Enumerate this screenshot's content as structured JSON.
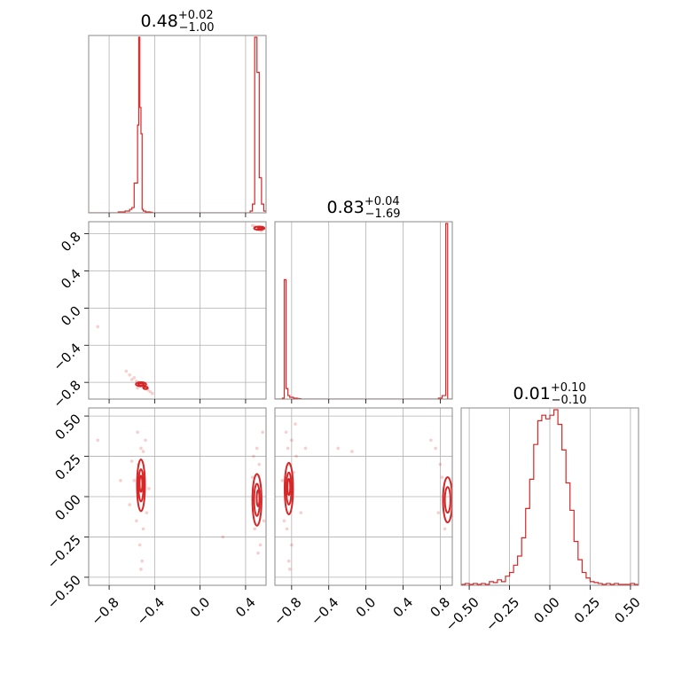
{
  "chart_data": {
    "type": "corner",
    "color": "#d62728",
    "grid": true,
    "titles": [
      {
        "value": "0.48",
        "plus": "+0.02",
        "minus": "−1.00"
      },
      {
        "value": "0.83",
        "plus": "+0.04",
        "minus": "−1.69"
      },
      {
        "value": "0.01",
        "plus": "+0.10",
        "minus": "−0.10"
      }
    ],
    "axes": {
      "p0": {
        "range": [
          -0.98,
          0.58
        ],
        "ticks": [
          -0.8,
          -0.4,
          0.0,
          0.4
        ],
        "tick_labels": [
          "−0.8",
          "−0.4",
          "0.0",
          "0.4"
        ]
      },
      "p1": {
        "range": [
          -0.98,
          0.93
        ],
        "ticks": [
          -0.8,
          -0.4,
          0.0,
          0.4,
          0.8
        ],
        "tick_labels": [
          "−0.8",
          "−0.4",
          "0.0",
          "0.4",
          "0.8"
        ]
      },
      "p2": {
        "range": [
          -0.55,
          0.55
        ],
        "ticks": [
          -0.5,
          -0.25,
          0.0,
          0.25,
          0.5
        ],
        "tick_labels": [
          "−0.50",
          "−0.25",
          "0.00",
          "0.25",
          "0.50"
        ]
      }
    },
    "hist_p0": {
      "edges": [
        -0.98,
        -0.72,
        -0.66,
        -0.62,
        -0.6,
        -0.58,
        -0.56,
        -0.55,
        -0.54,
        -0.53,
        -0.52,
        -0.51,
        -0.5,
        -0.48,
        -0.46,
        -0.44,
        -0.42,
        -0.38,
        0.22,
        0.26,
        0.28,
        0.3,
        0.32,
        0.34,
        0.36,
        0.38,
        0.4,
        0.42,
        0.44,
        0.46,
        0.48,
        0.5,
        0.52,
        0.54,
        0.56,
        0.58
      ],
      "counts": [
        0,
        0.005,
        0.01,
        0.02,
        0.03,
        0.17,
        0.17,
        0.5,
        1.0,
        0.6,
        0.45,
        0.02,
        0.01,
        0.005,
        0.005,
        0.003,
        0,
        0,
        0,
        0,
        0,
        0,
        0,
        0,
        0,
        0,
        0,
        0,
        0.01,
        0.05,
        1.0,
        0.8,
        0.2,
        0.05,
        0.01
      ]
    },
    "hist_p1": {
      "edges": [
        -0.98,
        -0.9,
        -0.88,
        -0.86,
        -0.84,
        -0.82,
        -0.8,
        -0.78,
        -0.76,
        -0.74,
        -0.72,
        -0.7,
        -0.66,
        -0.6,
        0.7,
        0.78,
        0.82,
        0.86,
        0.88,
        0.9,
        0.93
      ],
      "counts": [
        0,
        0.005,
        0.68,
        0.06,
        0.02,
        0.01,
        0.01,
        0.005,
        0.005,
        0.003,
        0.002,
        0,
        0,
        0,
        0,
        0.005,
        0.02,
        1.0,
        0,
        0
      ]
    },
    "hist_p2": {
      "edges": [
        -0.55,
        -0.525,
        -0.5,
        -0.475,
        -0.45,
        -0.425,
        -0.4,
        -0.375,
        -0.35,
        -0.325,
        -0.3,
        -0.275,
        -0.25,
        -0.225,
        -0.2,
        -0.175,
        -0.15,
        -0.125,
        -0.1,
        -0.075,
        -0.05,
        -0.025,
        0.0,
        0.025,
        0.05,
        0.075,
        0.1,
        0.125,
        0.15,
        0.175,
        0.2,
        0.225,
        0.25,
        0.275,
        0.3,
        0.325,
        0.35,
        0.375,
        0.4,
        0.425,
        0.45,
        0.475,
        0.5,
        0.525,
        0.55
      ],
      "counts": [
        0.005,
        0.01,
        0.005,
        0.01,
        0.005,
        0.01,
        0.005,
        0.02,
        0.015,
        0.03,
        0.02,
        0.05,
        0.07,
        0.11,
        0.16,
        0.26,
        0.42,
        0.58,
        0.77,
        0.9,
        0.93,
        0.91,
        0.93,
        0.96,
        0.88,
        0.74,
        0.56,
        0.41,
        0.24,
        0.14,
        0.07,
        0.04,
        0.02,
        0.015,
        0.01,
        0.005,
        0.01,
        0.005,
        0.01,
        0.005,
        0.005,
        0.005,
        0.01,
        0.005
      ]
    },
    "scatter_p0_p1": [
      [
        -0.51,
        -0.83
      ],
      [
        -0.52,
        -0.81
      ],
      [
        -0.5,
        -0.85
      ],
      [
        -0.54,
        -0.8
      ],
      [
        -0.48,
        -0.86
      ],
      [
        -0.46,
        -0.88
      ],
      [
        -0.56,
        -0.79
      ],
      [
        -0.6,
        -0.77
      ],
      [
        -0.62,
        -0.72
      ],
      [
        -0.44,
        -0.9
      ],
      [
        -0.42,
        -0.92
      ],
      [
        -0.65,
        -0.68
      ],
      [
        -0.58,
        -0.75
      ],
      [
        -0.53,
        -0.84
      ],
      [
        -0.49,
        -0.82
      ],
      [
        -0.55,
        -0.86
      ],
      [
        -0.47,
        -0.84
      ],
      [
        -0.9,
        -0.2
      ],
      [
        0.5,
        0.87
      ],
      [
        0.52,
        0.85
      ],
      [
        0.48,
        0.88
      ],
      [
        0.54,
        0.83
      ],
      [
        0.56,
        0.86
      ],
      [
        0.46,
        0.89
      ]
    ],
    "contours_p0_p1": [
      {
        "cx": -0.52,
        "cy": -0.82,
        "rx": 0.045,
        "ry": 0.022
      },
      {
        "cx": -0.52,
        "cy": -0.82,
        "rx": 0.025,
        "ry": 0.012
      },
      {
        "cx": -0.48,
        "cy": -0.86,
        "rx": 0.02,
        "ry": 0.012
      },
      {
        "cx": 0.52,
        "cy": 0.86,
        "rx": 0.045,
        "ry": 0.018
      },
      {
        "cx": 0.53,
        "cy": 0.86,
        "rx": 0.02,
        "ry": 0.01
      }
    ],
    "scatter_p0_p2": [
      [
        -0.52,
        0.3
      ],
      [
        -0.54,
        0.2
      ],
      [
        -0.5,
        -0.2
      ],
      [
        -0.53,
        -0.3
      ],
      [
        -0.55,
        0.4
      ],
      [
        -0.51,
        -0.4
      ],
      [
        -0.49,
        0.15
      ],
      [
        -0.56,
        -0.15
      ],
      [
        -0.58,
        0.1
      ],
      [
        -0.47,
        -0.1
      ],
      [
        -0.45,
        0.05
      ],
      [
        -0.6,
        0.22
      ],
      [
        -0.5,
        0.28
      ],
      [
        -0.52,
        -0.45
      ],
      [
        -0.62,
        -0.05
      ],
      [
        -0.48,
        0.35
      ],
      [
        -0.7,
        0.1
      ],
      [
        -0.9,
        0.35
      ],
      [
        0.5,
        0.3
      ],
      [
        0.52,
        0.2
      ],
      [
        0.48,
        -0.2
      ],
      [
        0.53,
        -0.3
      ],
      [
        0.55,
        0.4
      ],
      [
        0.51,
        -0.35
      ],
      [
        0.46,
        0.12
      ],
      [
        0.56,
        -0.15
      ],
      [
        0.2,
        -0.25
      ],
      [
        0.47,
        0.25
      ]
    ],
    "contours_p0_p2": [
      {
        "cx": -0.52,
        "cy": 0.07,
        "rx": 0.035,
        "ry": 0.16
      },
      {
        "cx": -0.52,
        "cy": 0.07,
        "rx": 0.022,
        "ry": 0.1
      },
      {
        "cx": -0.52,
        "cy": 0.08,
        "rx": 0.012,
        "ry": 0.05
      },
      {
        "cx": 0.5,
        "cy": -0.02,
        "rx": 0.04,
        "ry": 0.16
      },
      {
        "cx": 0.5,
        "cy": -0.02,
        "rx": 0.025,
        "ry": 0.1
      },
      {
        "cx": 0.51,
        "cy": -0.01,
        "rx": 0.012,
        "ry": 0.05
      }
    ],
    "scatter_p1_p2": [
      [
        -0.84,
        0.3
      ],
      [
        -0.82,
        0.2
      ],
      [
        -0.85,
        -0.2
      ],
      [
        -0.8,
        -0.3
      ],
      [
        -0.86,
        0.4
      ],
      [
        -0.83,
        -0.4
      ],
      [
        -0.78,
        0.15
      ],
      [
        -0.88,
        -0.15
      ],
      [
        -0.75,
        0.25
      ],
      [
        -0.8,
        0.35
      ],
      [
        -0.9,
        0.1
      ],
      [
        -0.7,
        -0.1
      ],
      [
        -0.76,
        0.45
      ],
      [
        -0.82,
        -0.45
      ],
      [
        -0.65,
        0.3
      ],
      [
        -0.3,
        0.3
      ],
      [
        -0.15,
        0.28
      ],
      [
        0.75,
        0.3
      ],
      [
        0.8,
        0.2
      ],
      [
        0.85,
        -0.2
      ],
      [
        0.78,
        -0.1
      ],
      [
        0.82,
        0.12
      ],
      [
        0.7,
        0.35
      ]
    ],
    "contours_p1_p2": [
      {
        "cx": -0.83,
        "cy": 0.05,
        "rx": 0.045,
        "ry": 0.16
      },
      {
        "cx": -0.83,
        "cy": 0.05,
        "rx": 0.028,
        "ry": 0.1
      },
      {
        "cx": -0.83,
        "cy": 0.06,
        "rx": 0.015,
        "ry": 0.05
      },
      {
        "cx": 0.88,
        "cy": -0.02,
        "rx": 0.05,
        "ry": 0.14
      },
      {
        "cx": 0.88,
        "cy": -0.02,
        "rx": 0.03,
        "ry": 0.08
      }
    ]
  }
}
